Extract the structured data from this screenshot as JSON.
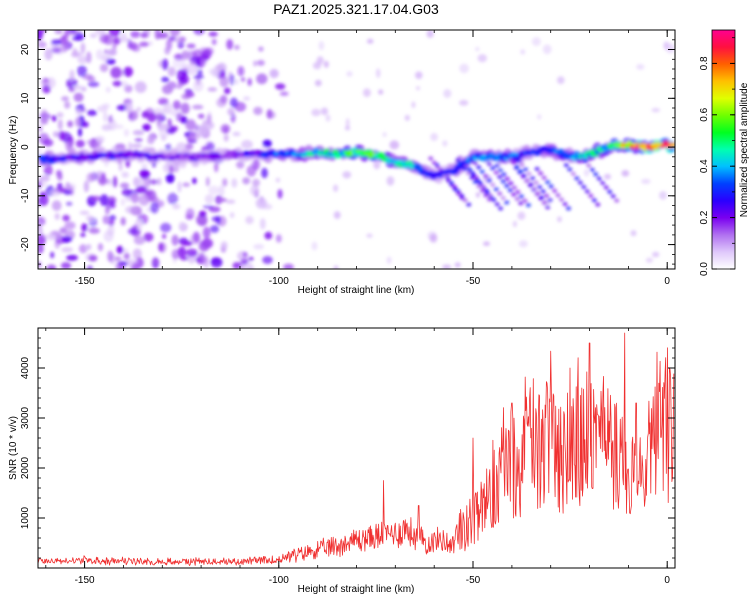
{
  "figure": {
    "title": "PAZ1.2025.321.17.04.G03"
  },
  "chart_data": [
    {
      "type": "heatmap",
      "panel": "spectrogram",
      "xlabel": "Height of straight line (km)",
      "ylabel": "Frequency (Hz)",
      "xlim": [
        -162,
        2
      ],
      "ylim": [
        -25,
        24
      ],
      "xticks": [
        -150,
        -100,
        -50,
        0
      ],
      "xtick_labels": [
        "-150",
        "-100",
        "-50",
        "0"
      ],
      "yticks": [
        20,
        10,
        0,
        -10,
        -20
      ],
      "ytick_labels": [
        "20",
        "10",
        "0",
        "-10",
        "-20"
      ],
      "grid": false,
      "ridge": {
        "x": [
          -160,
          -150,
          -140,
          -130,
          -120,
          -110,
          -100,
          -95,
          -90,
          -85,
          -80,
          -75,
          -70,
          -65,
          -60,
          -55,
          -50,
          -45,
          -40,
          -35,
          -30,
          -25,
          -20,
          -15,
          -10,
          -5,
          0
        ],
        "freq_hz": [
          -2.5,
          -2,
          -1.5,
          -2,
          -2,
          -1.5,
          -1.5,
          -1.5,
          -1,
          -1.5,
          -1,
          -1.5,
          -3,
          -4,
          -6,
          -5,
          -2,
          -2,
          -2,
          -1,
          -0.5,
          -2,
          -1.5,
          0,
          0.5,
          0,
          0.5
        ],
        "peak_amplitude": [
          0.3,
          0.25,
          0.25,
          0.2,
          0.2,
          0.2,
          0.35,
          0.4,
          0.45,
          0.5,
          0.55,
          0.6,
          0.5,
          0.4,
          0.25,
          0.3,
          0.35,
          0.4,
          0.35,
          0.3,
          0.35,
          0.4,
          0.45,
          0.5,
          0.7,
          0.95,
          0.9
        ]
      },
      "noise_region_x": [
        -162,
        -95
      ],
      "noise_amplitude": 0.12,
      "colorbar": {
        "label": "Normalized spectral amplitude",
        "range": [
          0,
          0.93
        ],
        "ticks": [
          0.0,
          0.2,
          0.4,
          0.6,
          0.8
        ],
        "tick_labels": [
          "0.0",
          "0.2",
          "0.4",
          "0.6",
          "0.8"
        ],
        "colormap": [
          "#ffffff",
          "#dfc8fb",
          "#b070f0",
          "#7a00f0",
          "#2a00ff",
          "#0040ff",
          "#00c0ff",
          "#00ffb0",
          "#00ff20",
          "#70ff00",
          "#e0ff00",
          "#ffc000",
          "#ff6000",
          "#ff1040",
          "#ff0090"
        ]
      }
    },
    {
      "type": "line",
      "panel": "snr",
      "xlabel": "Height of straight line (km)",
      "ylabel": "SNR (10 * v/v)",
      "xlim": [
        -162,
        2
      ],
      "ylim": [
        0,
        4800
      ],
      "xticks": [
        -150,
        -100,
        -50,
        0
      ],
      "xtick_labels": [
        "-150",
        "-100",
        "-50",
        "0"
      ],
      "yticks": [
        1000,
        2000,
        3000,
        4000
      ],
      "ytick_labels": [
        "1000",
        "2000",
        "3000",
        "4000"
      ],
      "grid": false,
      "color": "#f03030",
      "x": [
        -162,
        -155,
        -150,
        -145,
        -140,
        -135,
        -130,
        -125,
        -120,
        -115,
        -110,
        -105,
        -100,
        -97,
        -94,
        -91,
        -88,
        -85,
        -82,
        -79,
        -76,
        -73,
        -70,
        -67,
        -64,
        -61,
        -58,
        -55,
        -52,
        -50,
        -48,
        -46,
        -44,
        -42,
        -40,
        -38,
        -36,
        -34,
        -32,
        -30,
        -28,
        -26,
        -24,
        -22,
        -20,
        -18,
        -16,
        -14,
        -12,
        -10,
        -8,
        -6,
        -4,
        -2,
        0,
        2
      ],
      "y": [
        200,
        190,
        210,
        180,
        190,
        200,
        170,
        180,
        190,
        170,
        180,
        200,
        220,
        260,
        300,
        380,
        420,
        480,
        560,
        620,
        650,
        700,
        760,
        820,
        620,
        560,
        600,
        520,
        700,
        820,
        950,
        1150,
        1350,
        1700,
        1850,
        1650,
        2000,
        2150,
        1950,
        2300,
        1800,
        2000,
        2100,
        1950,
        2400,
        2250,
        2200,
        2000,
        1800,
        1600,
        1400,
        1500,
        2200,
        2300,
        2400,
        2200
      ],
      "spikes": [
        {
          "x": -73,
          "y": 1750
        },
        {
          "x": -64,
          "y": 1250
        },
        {
          "x": -50,
          "y": 2600
        },
        {
          "x": -40,
          "y": 3300
        },
        {
          "x": -31,
          "y": 3700
        },
        {
          "x": -25,
          "y": 4000
        },
        {
          "x": -22,
          "y": 3600
        },
        {
          "x": -20,
          "y": 4500
        },
        {
          "x": -11,
          "y": 4700
        },
        {
          "x": -8,
          "y": 3300
        }
      ]
    }
  ]
}
